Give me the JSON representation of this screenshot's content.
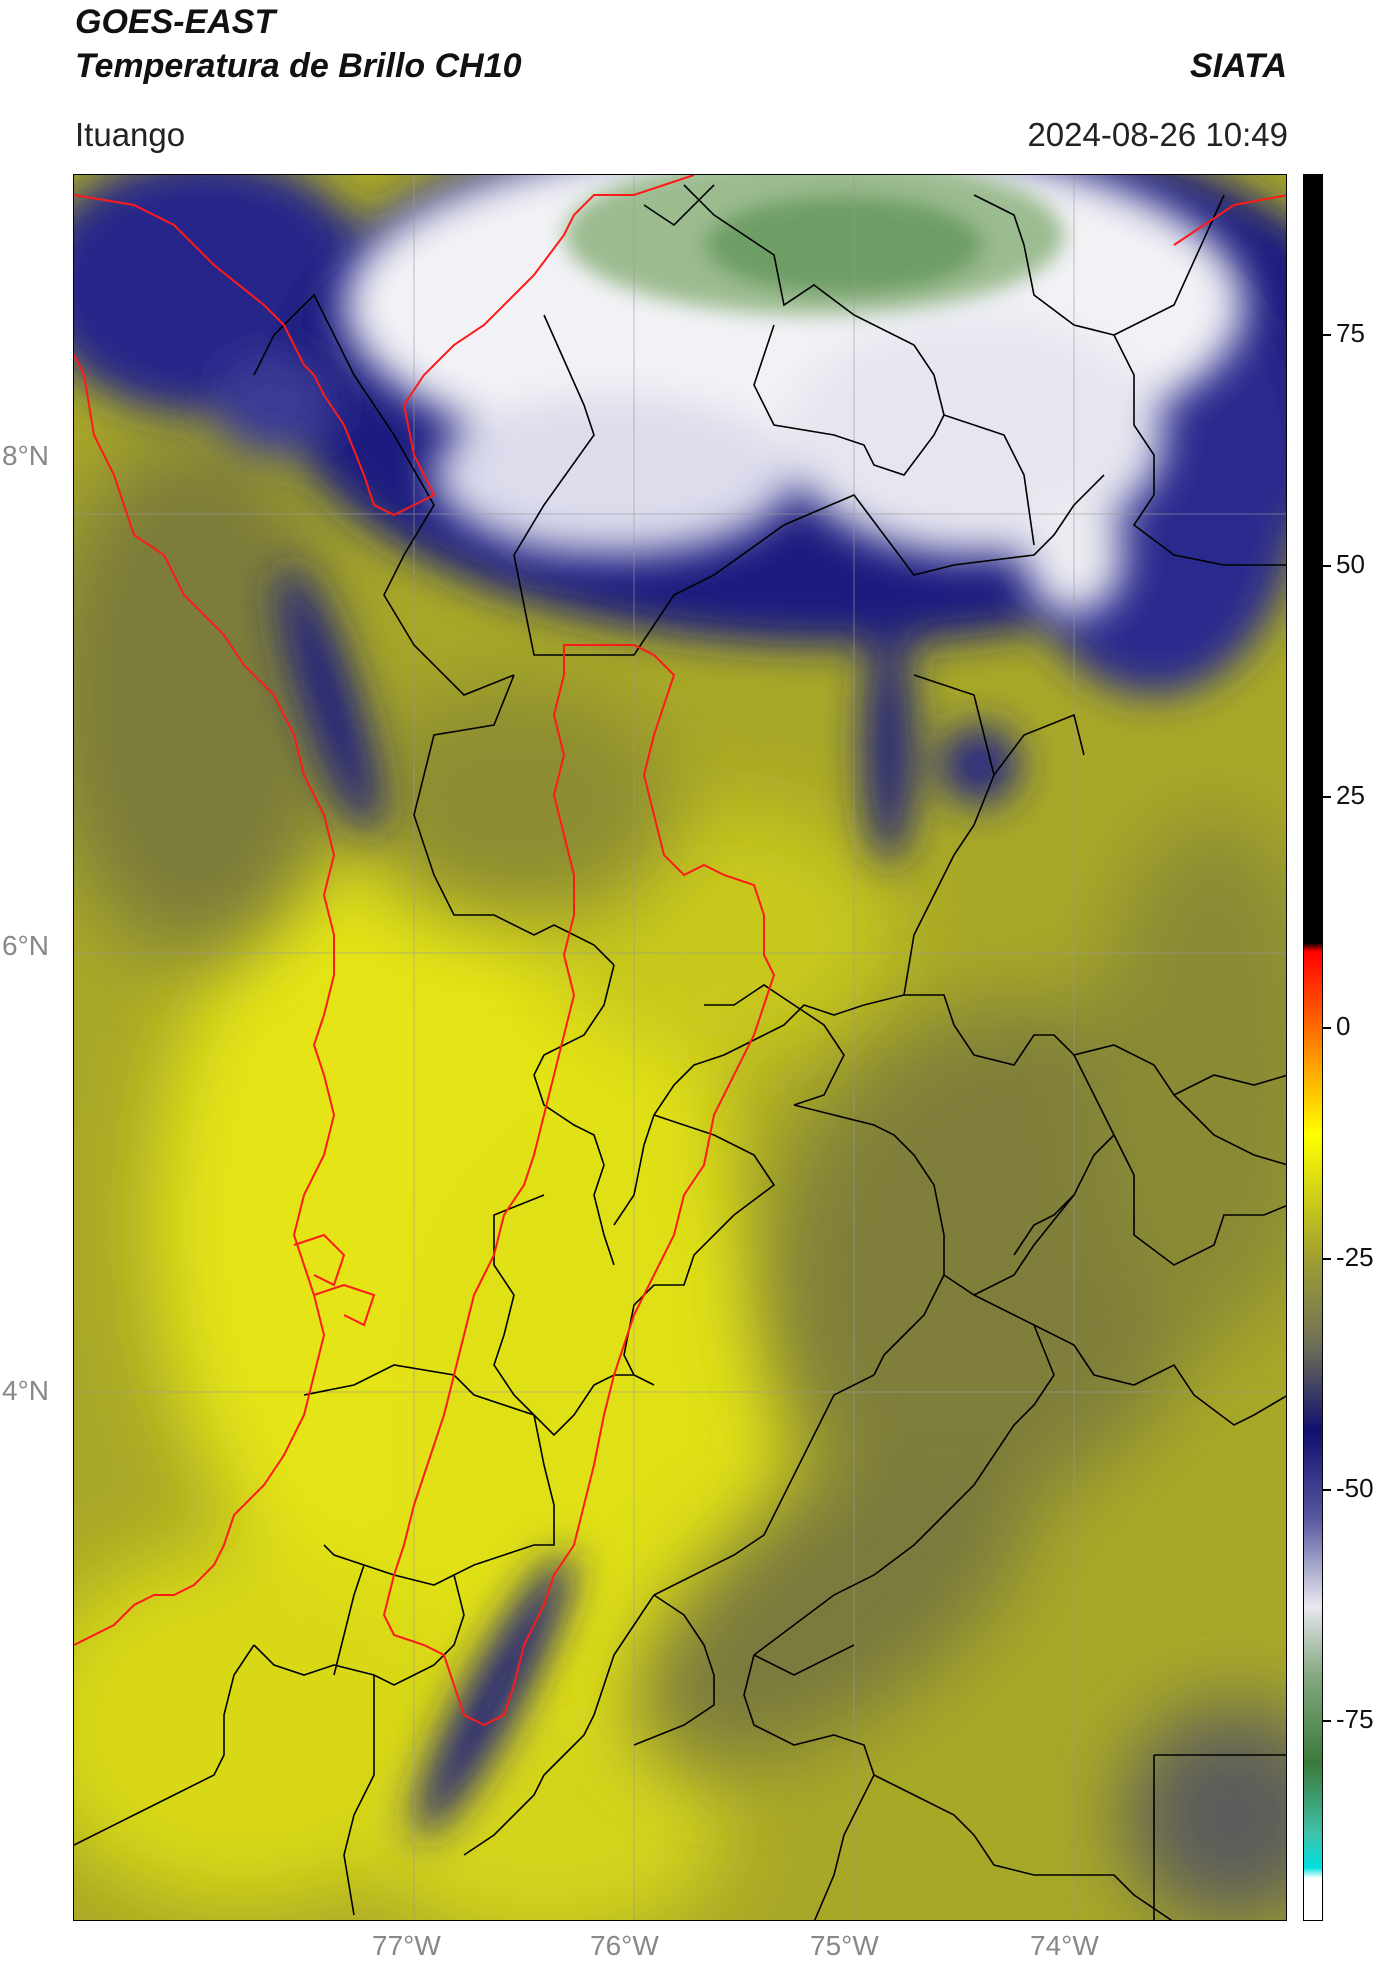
{
  "header": {
    "satellite": "GOES-EAST",
    "product": "Temperatura de Brillo CH10",
    "organization": "SIATA",
    "region": "Ituango",
    "datetime": "2024-08-26 10:49"
  },
  "map": {
    "lat_labels": [
      "8°N",
      "6°N",
      "4°N"
    ],
    "lon_labels": [
      "77°W",
      "76°W",
      "75°W",
      "74°W"
    ],
    "lon_range": [
      -78.5,
      -72.9
    ],
    "lat_range": [
      1.8,
      9.5
    ],
    "gridlines": true,
    "colors": {
      "warm_yellow": "#e4e412",
      "olive": "#a8a828",
      "dark_olive": "#6c6c44",
      "deep_blue": "#18187a",
      "white": "#f4f4f8",
      "green": "#4e8a4a",
      "basin_outline": "#ff1a1a",
      "borders": "#000000"
    }
  },
  "colorbar": {
    "ticks": [
      "75",
      "50",
      "25",
      "0",
      "-25",
      "-50",
      "-75"
    ],
    "range": [
      -92,
      90
    ]
  }
}
